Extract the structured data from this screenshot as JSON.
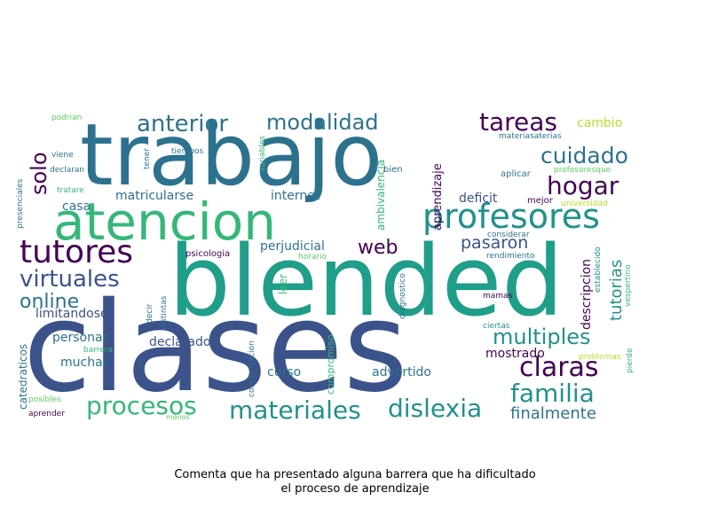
{
  "caption": {
    "line1": "Comenta que ha presentado alguna barrera que ha dificultado",
    "line2": "el proceso de aprendizaje"
  },
  "palette": {
    "dark_purple": "#440154",
    "indigo": "#3b528b",
    "blue": "#31688e",
    "teal_blue": "#2c728e",
    "teal": "#21918c",
    "green_teal": "#1f9e89",
    "green": "#35b779",
    "light_green": "#5ec962",
    "yellow_green": "#b5de2b"
  },
  "words": [
    {
      "text": "clases",
      "weight": 1.0,
      "color": "indigo"
    },
    {
      "text": "blended",
      "weight": 0.95,
      "color": "green_teal"
    },
    {
      "text": "trabajo",
      "weight": 0.88,
      "color": "teal_blue"
    },
    {
      "text": "atencion",
      "weight": 0.6,
      "color": "green"
    },
    {
      "text": "profesores",
      "weight": 0.35,
      "color": "teal"
    },
    {
      "text": "tutores",
      "weight": 0.33,
      "color": "dark_purple"
    },
    {
      "text": "materiales",
      "weight": 0.27,
      "color": "teal"
    },
    {
      "text": "dislexia",
      "weight": 0.27,
      "color": "teal"
    },
    {
      "text": "procesos",
      "weight": 0.27,
      "color": "green"
    },
    {
      "text": "tareas",
      "weight": 0.27,
      "color": "dark_purple"
    },
    {
      "text": "familia",
      "weight": 0.27,
      "color": "teal"
    },
    {
      "text": "claras",
      "weight": 0.27,
      "color": "dark_purple"
    },
    {
      "text": "hogar",
      "weight": 0.27,
      "color": "dark_purple"
    },
    {
      "text": "anterior",
      "weight": 0.26,
      "color": "teal_blue"
    },
    {
      "text": "virtuales",
      "weight": 0.25,
      "color": "indigo"
    },
    {
      "text": "cuidado",
      "weight": 0.25,
      "color": "teal_blue"
    },
    {
      "text": "multiples",
      "weight": 0.24,
      "color": "teal"
    },
    {
      "text": "modalidad",
      "weight": 0.24,
      "color": "teal_blue"
    },
    {
      "text": "solo",
      "weight": 0.24,
      "color": "dark_purple"
    },
    {
      "text": "web",
      "weight": 0.22,
      "color": "dark_purple"
    },
    {
      "text": "online",
      "weight": 0.21,
      "color": "teal_blue"
    },
    {
      "text": "pasaron",
      "weight": 0.19,
      "color": "indigo"
    },
    {
      "text": "finalmente",
      "weight": 0.18,
      "color": "teal_blue"
    },
    {
      "text": "tutorias",
      "weight": 0.18,
      "color": "teal"
    },
    {
      "text": "personas",
      "weight": 0.14,
      "color": "teal_blue"
    },
    {
      "text": "mostrado",
      "weight": 0.14,
      "color": "dark_purple"
    },
    {
      "text": "declarado",
      "weight": 0.14,
      "color": "indigo"
    },
    {
      "text": "advertido",
      "weight": 0.14,
      "color": "teal_blue"
    },
    {
      "text": "matricularse",
      "weight": 0.14,
      "color": "teal_blue"
    },
    {
      "text": "limitandose",
      "weight": 0.14,
      "color": "indigo"
    },
    {
      "text": "muchas",
      "weight": 0.14,
      "color": "teal_blue"
    },
    {
      "text": "cambio",
      "weight": 0.14,
      "color": "yellow_green"
    },
    {
      "text": "perjudicial",
      "weight": 0.14,
      "color": "teal_blue"
    },
    {
      "text": "internet",
      "weight": 0.14,
      "color": "teal_blue"
    },
    {
      "text": "deficit",
      "weight": 0.14,
      "color": "indigo"
    },
    {
      "text": "curso",
      "weight": 0.14,
      "color": "teal_blue"
    },
    {
      "text": "casa",
      "weight": 0.14,
      "color": "teal_blue"
    },
    {
      "text": "descripcion",
      "weight": 0.14,
      "color": "dark_purple"
    },
    {
      "text": "aprendizaje",
      "weight": 0.13,
      "color": "dark_purple"
    },
    {
      "text": "catedraticos",
      "weight": 0.12,
      "color": "teal_blue"
    },
    {
      "text": "leer",
      "weight": 0.12,
      "color": "green"
    },
    {
      "text": "ambivalencia",
      "weight": 0.12,
      "color": "green"
    },
    {
      "text": "compromiso",
      "weight": 0.11,
      "color": "green"
    },
    {
      "text": "psicologia",
      "weight": 0.1,
      "color": "dark_purple"
    },
    {
      "text": "bien",
      "weight": 0.1,
      "color": "teal_blue"
    },
    {
      "text": "aplicar",
      "weight": 0.1,
      "color": "teal_blue"
    },
    {
      "text": "mejor",
      "weight": 0.1,
      "color": "dark_purple"
    },
    {
      "text": "horario",
      "weight": 0.09,
      "color": "light_green"
    },
    {
      "text": "considerar",
      "weight": 0.09,
      "color": "teal_blue"
    },
    {
      "text": "rendimiento",
      "weight": 0.09,
      "color": "teal_blue"
    },
    {
      "text": "mamas",
      "weight": 0.09,
      "color": "dark_purple"
    },
    {
      "text": "ciertas",
      "weight": 0.09,
      "color": "teal"
    },
    {
      "text": "presenciales",
      "weight": 0.09,
      "color": "teal_blue"
    },
    {
      "text": "tener",
      "weight": 0.09,
      "color": "teal_blue"
    },
    {
      "text": "tiempos",
      "weight": 0.09,
      "color": "teal_blue"
    },
    {
      "text": "variables",
      "weight": 0.09,
      "color": "green"
    },
    {
      "text": "declaran",
      "weight": 0.09,
      "color": "teal_blue"
    },
    {
      "text": "viene",
      "weight": 0.09,
      "color": "teal_blue"
    },
    {
      "text": "tratare",
      "weight": 0.09,
      "color": "green"
    },
    {
      "text": "podrian",
      "weight": 0.09,
      "color": "light_green"
    },
    {
      "text": "materiasaterias",
      "weight": 0.09,
      "color": "teal_blue"
    },
    {
      "text": "profesoresque",
      "weight": 0.09,
      "color": "light_green"
    },
    {
      "text": "universidad",
      "weight": 0.09,
      "color": "yellow_green"
    },
    {
      "text": "establecido",
      "weight": 0.09,
      "color": "teal"
    },
    {
      "text": "vespertino",
      "weight": 0.09,
      "color": "green"
    },
    {
      "text": "diagnostico",
      "weight": 0.09,
      "color": "teal_blue"
    },
    {
      "text": "concentracion",
      "weight": 0.09,
      "color": "teal_blue"
    },
    {
      "text": "distintas",
      "weight": 0.09,
      "color": "teal_blue"
    },
    {
      "text": "decir",
      "weight": 0.09,
      "color": "teal_blue"
    },
    {
      "text": "barrera",
      "weight": 0.09,
      "color": "green"
    },
    {
      "text": "posibles",
      "weight": 0.09,
      "color": "light_green"
    },
    {
      "text": "aprender",
      "weight": 0.09,
      "color": "dark_purple"
    },
    {
      "text": "menos",
      "weight": 0.08,
      "color": "light_green"
    },
    {
      "text": "problemas",
      "weight": 0.09,
      "color": "yellow_green"
    },
    {
      "text": "pierde",
      "weight": 0.09,
      "color": "green"
    }
  ]
}
